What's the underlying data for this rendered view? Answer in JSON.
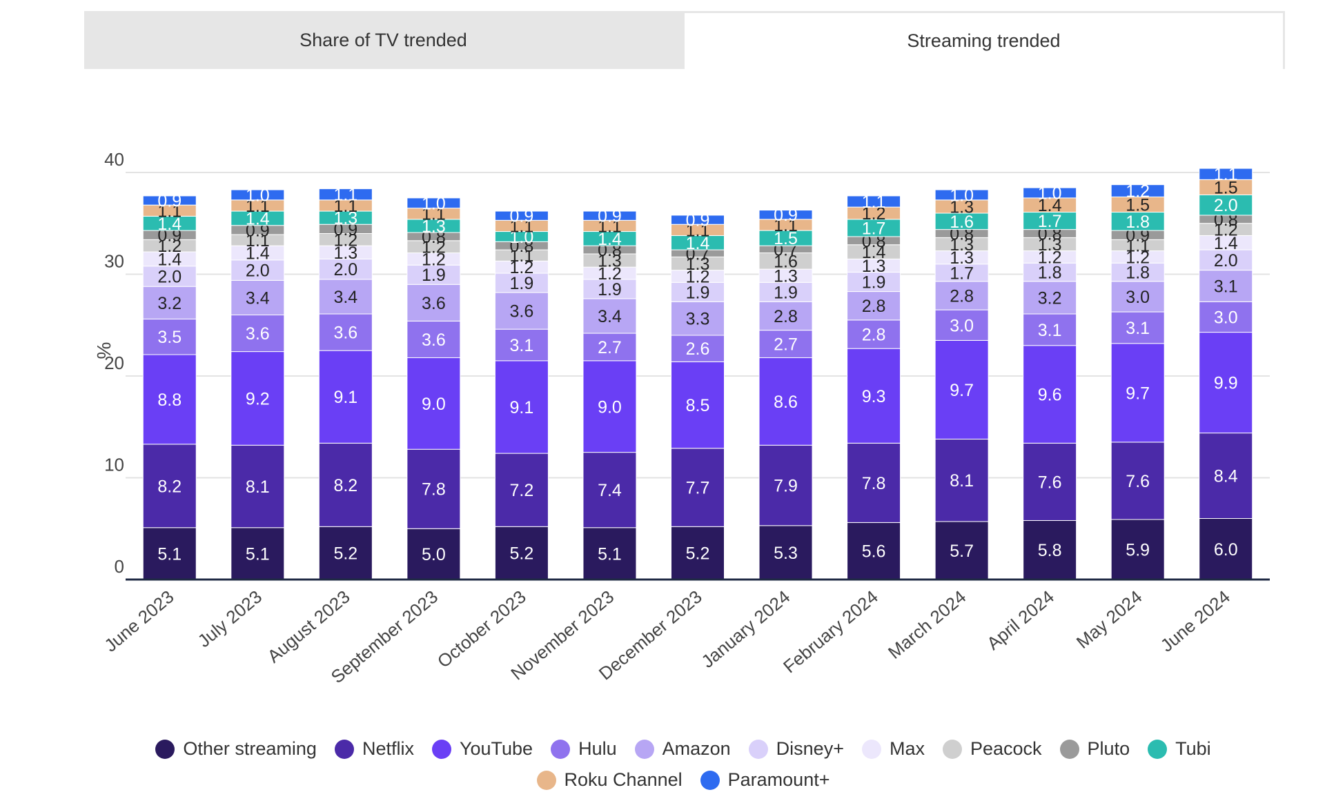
{
  "tabs": [
    {
      "label": "Share of TV trended",
      "active": false
    },
    {
      "label": "Streaming trended",
      "active": true
    }
  ],
  "chart_data": {
    "type": "bar",
    "stacked": true,
    "title": "",
    "xlabel": "",
    "ylabel": "%",
    "ylim": [
      0,
      40
    ],
    "yticks": [
      0,
      10,
      20,
      30,
      40
    ],
    "grid": true,
    "legend_position": "bottom",
    "categories": [
      "June 2023",
      "July 2023",
      "August 2023",
      "September 2023",
      "October 2023",
      "November 2023",
      "December 2023",
      "January 2024",
      "February 2024",
      "March 2024",
      "April 2024",
      "May 2024",
      "June 2024"
    ],
    "series": [
      {
        "name": "Other streaming",
        "color": "#2a1a5e",
        "values": [
          5.1,
          5.1,
          5.2,
          5.0,
          5.2,
          5.1,
          5.2,
          5.3,
          5.6,
          5.7,
          5.8,
          5.9,
          6.0
        ]
      },
      {
        "name": "Netflix",
        "color": "#4b2aa8",
        "values": [
          8.2,
          8.1,
          8.2,
          7.8,
          7.2,
          7.4,
          7.7,
          7.9,
          7.8,
          8.1,
          7.6,
          7.6,
          8.4
        ]
      },
      {
        "name": "YouTube",
        "color": "#6a3ff5",
        "values": [
          8.8,
          9.2,
          9.1,
          9.0,
          9.1,
          9.0,
          8.5,
          8.6,
          9.3,
          9.7,
          9.6,
          9.7,
          9.9
        ]
      },
      {
        "name": "Hulu",
        "color": "#8f72ee",
        "values": [
          3.5,
          3.6,
          3.6,
          3.6,
          3.1,
          2.7,
          2.6,
          2.7,
          2.8,
          3.0,
          3.1,
          3.1,
          3.0
        ]
      },
      {
        "name": "Amazon",
        "color": "#b7a6f4",
        "values": [
          3.2,
          3.4,
          3.4,
          3.6,
          3.6,
          3.4,
          3.3,
          2.8,
          2.8,
          2.8,
          3.2,
          3.0,
          3.1
        ]
      },
      {
        "name": "Disney+",
        "color": "#d9d0fa",
        "values": [
          2.0,
          2.0,
          2.0,
          1.9,
          1.9,
          1.9,
          1.9,
          1.9,
          1.9,
          1.7,
          1.8,
          1.8,
          2.0
        ]
      },
      {
        "name": "Max",
        "color": "#ece7fc",
        "values": [
          1.4,
          1.4,
          1.3,
          1.2,
          1.2,
          1.2,
          1.2,
          1.3,
          1.3,
          1.3,
          1.2,
          1.2,
          1.4
        ]
      },
      {
        "name": "Peacock",
        "color": "#cfcfcf",
        "values": [
          1.2,
          1.1,
          1.2,
          1.2,
          1.1,
          1.3,
          1.3,
          1.6,
          1.4,
          1.3,
          1.3,
          1.1,
          1.2
        ]
      },
      {
        "name": "Pluto",
        "color": "#9a9a9a",
        "values": [
          0.9,
          0.9,
          0.9,
          0.8,
          0.8,
          0.8,
          0.7,
          0.7,
          0.8,
          0.8,
          0.8,
          0.9,
          0.8
        ]
      },
      {
        "name": "Tubi",
        "color": "#2bbcb0",
        "values": [
          1.4,
          1.4,
          1.3,
          1.3,
          1.0,
          1.4,
          1.4,
          1.5,
          1.7,
          1.6,
          1.7,
          1.8,
          2.0
        ]
      },
      {
        "name": "Roku Channel",
        "color": "#e8b68a",
        "values": [
          1.1,
          1.1,
          1.1,
          1.1,
          1.1,
          1.1,
          1.1,
          1.1,
          1.2,
          1.3,
          1.4,
          1.5,
          1.5
        ]
      },
      {
        "name": "Paramount+",
        "color": "#2e6bf0",
        "values": [
          0.9,
          1.0,
          1.1,
          1.0,
          0.9,
          0.9,
          0.9,
          0.9,
          1.1,
          1.0,
          1.0,
          1.2,
          1.1
        ]
      }
    ]
  }
}
